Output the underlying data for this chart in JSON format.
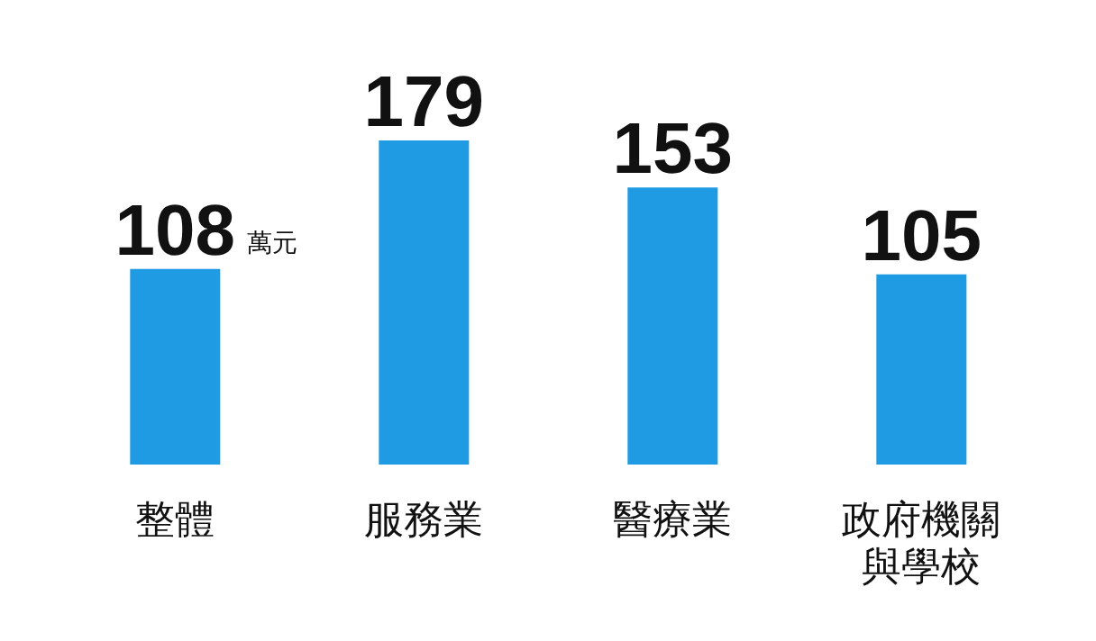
{
  "chart_data": {
    "type": "bar",
    "categories": [
      "整體",
      "服務業",
      "醫療業",
      "政府機關與學校"
    ],
    "values": [
      108,
      179,
      153,
      105
    ],
    "color": "#1e9be2",
    "data_labels": true,
    "annotations": [
      "萬元"
    ]
  }
}
